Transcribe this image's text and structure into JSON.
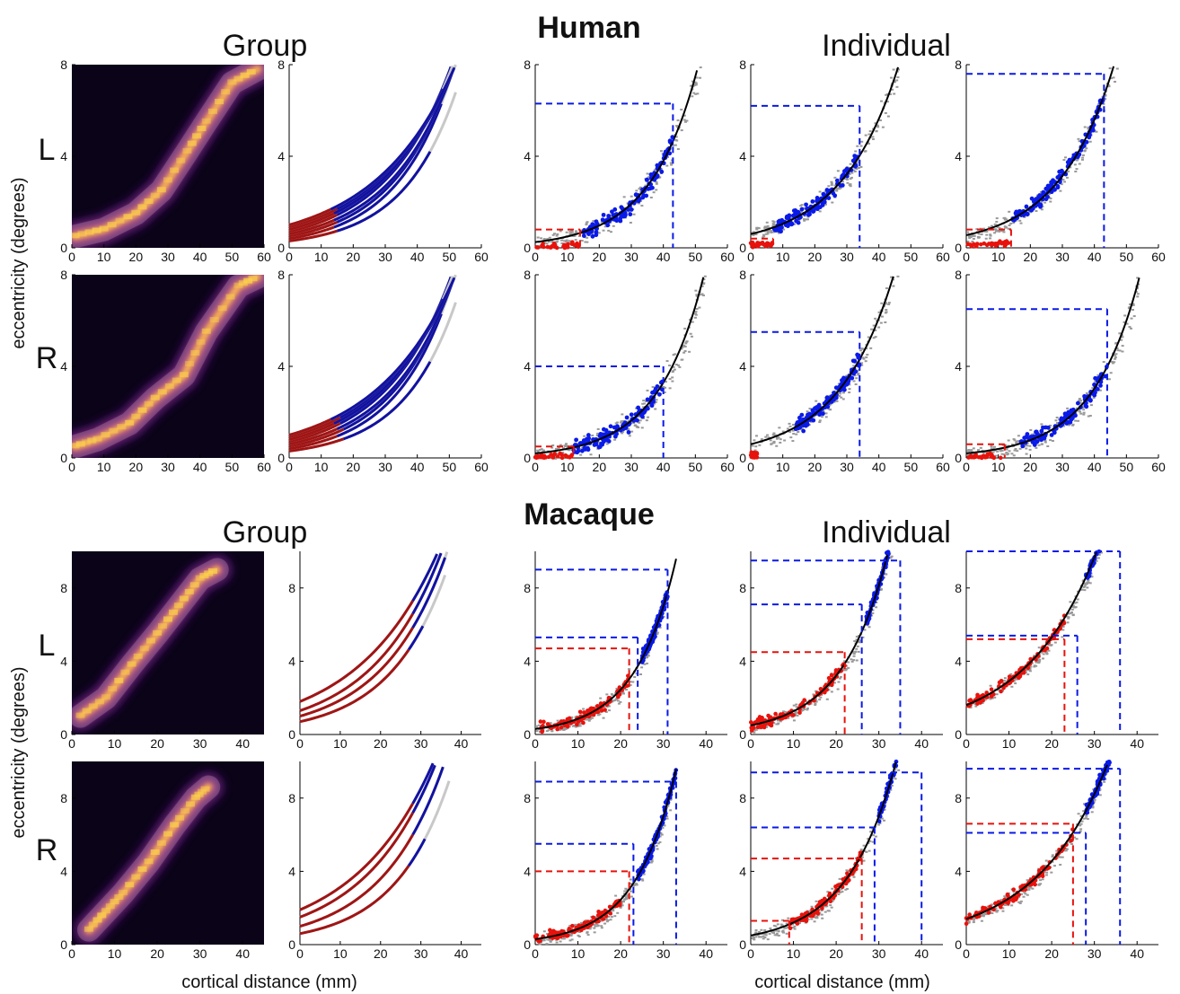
{
  "headings": {
    "human": "Human",
    "macaque": "Macaque",
    "group": "Group",
    "individual": "Individual"
  },
  "axes": {
    "ylabel": "eccentricity (degrees)",
    "xlabel": "cortical distance (mm)"
  },
  "hemispheres": [
    "L",
    "R"
  ],
  "colors": {
    "foveal": "#e8120c",
    "peripheral": "#0a1ae8",
    "fit_red": "#a01515",
    "fit_blue": "#1212a0",
    "fit_grey": "#c8c8c8",
    "points_grey": "#999999",
    "fit_black": "#000000",
    "heatmap_bg": "#0b0418"
  },
  "chart_data": {
    "species": [
      {
        "name": "Human",
        "x_ticks": [
          "0",
          "10",
          "20",
          "30",
          "40",
          "50",
          "60"
        ],
        "y_ticks": [
          "0",
          "4",
          "8"
        ],
        "xlim": [
          0,
          60
        ],
        "ylim": [
          0,
          8
        ],
        "rows": [
          {
            "hemisphere": "L",
            "group_heatmap": {
              "type": "heatmap",
              "path": [
                [
                  1,
                  0.5
                ],
                [
                  10,
                  0.8
                ],
                [
                  20,
                  1.5
                ],
                [
                  28,
                  2.5
                ],
                [
                  36,
                  4.2
                ],
                [
                  42,
                  5.5
                ],
                [
                  50,
                  7.2
                ],
                [
                  58,
                  7.8
                ]
              ]
            },
            "group_fits": {
              "type": "line",
              "curves": [
                {
                  "a": 0.3,
                  "b": 0.06,
                  "x_end": 52,
                  "split": 15
                },
                {
                  "a": 0.5,
                  "b": 0.054,
                  "x_end": 54,
                  "split": 15
                },
                {
                  "a": 0.7,
                  "b": 0.048,
                  "x_end": 56,
                  "split": 15
                },
                {
                  "a": 0.9,
                  "b": 0.042,
                  "x_end": 58,
                  "split": 15
                },
                {
                  "a": 0.4,
                  "b": 0.058,
                  "x_end": 53,
                  "split": 14
                },
                {
                  "a": 0.6,
                  "b": 0.05,
                  "x_end": 55,
                  "split": 14
                },
                {
                  "a": 0.8,
                  "b": 0.045,
                  "x_end": 57,
                  "split": 14
                },
                {
                  "a": 1.0,
                  "b": 0.04,
                  "x_end": 58,
                  "split": 13
                }
              ]
            },
            "individuals": [
              {
                "type": "scatter",
                "fit_a": 0.25,
                "fit_b": 0.068,
                "red_h": 0.8,
                "red_v": 14,
                "blue_h": 6.3,
                "blue_v": 43,
                "blue_range": [
                  14,
                  43
                ],
                "cloud_end": 55
              },
              {
                "type": "scatter",
                "fit_a": 0.6,
                "fit_b": 0.056,
                "red_h": 0.4,
                "red_v": 7,
                "blue_h": 6.2,
                "blue_v": 34,
                "blue_range": [
                  7,
                  34
                ],
                "cloud_end": 58
              },
              {
                "type": "scatter",
                "fit_a": 0.55,
                "fit_b": 0.058,
                "red_h": 0.8,
                "red_v": 14,
                "blue_h": 7.6,
                "blue_v": 43,
                "blue_range": [
                  14,
                  43
                ],
                "cloud_end": 58
              }
            ]
          },
          {
            "hemisphere": "R",
            "group_heatmap": {
              "type": "heatmap",
              "path": [
                [
                  1,
                  0.5
                ],
                [
                  8,
                  0.8
                ],
                [
                  18,
                  1.5
                ],
                [
                  26,
                  2.6
                ],
                [
                  35,
                  3.6
                ],
                [
                  42,
                  5.5
                ],
                [
                  52,
                  7.5
                ],
                [
                  58,
                  7.9
                ]
              ]
            },
            "group_fits": {
              "type": "line",
              "curves": [
                {
                  "a": 0.3,
                  "b": 0.06,
                  "x_end": 52,
                  "split": 17
                },
                {
                  "a": 0.5,
                  "b": 0.054,
                  "x_end": 54,
                  "split": 17
                },
                {
                  "a": 0.7,
                  "b": 0.048,
                  "x_end": 56,
                  "split": 16
                },
                {
                  "a": 0.9,
                  "b": 0.042,
                  "x_end": 58,
                  "split": 16
                },
                {
                  "a": 0.4,
                  "b": 0.058,
                  "x_end": 53,
                  "split": 15
                },
                {
                  "a": 0.6,
                  "b": 0.05,
                  "x_end": 55,
                  "split": 15
                },
                {
                  "a": 0.8,
                  "b": 0.045,
                  "x_end": 57,
                  "split": 14
                },
                {
                  "a": 1.0,
                  "b": 0.04,
                  "x_end": 58,
                  "split": 13
                }
              ]
            },
            "individuals": [
              {
                "type": "scatter",
                "fit_a": 0.2,
                "fit_b": 0.07,
                "red_h": 0.5,
                "red_v": 12,
                "blue_h": 4.0,
                "blue_v": 40,
                "blue_range": [
                  12,
                  40
                ],
                "cloud_end": 56
              },
              {
                "type": "scatter",
                "fit_a": 0.6,
                "fit_b": 0.058,
                "red_h": 0.1,
                "red_v": 2,
                "blue_h": 5.5,
                "blue_v": 34,
                "blue_range": [
                  14,
                  34
                ],
                "cloud_end": 58
              },
              {
                "type": "scatter",
                "fit_a": 0.2,
                "fit_b": 0.068,
                "red_h": 0.6,
                "red_v": 12,
                "blue_h": 6.5,
                "blue_v": 44,
                "blue_range": [
                  17,
                  44
                ],
                "cloud_end": 58
              }
            ]
          }
        ]
      },
      {
        "name": "Macaque",
        "x_ticks": [
          "0",
          "10",
          "20",
          "30",
          "40"
        ],
        "y_ticks": [
          "0",
          "4",
          "8"
        ],
        "xlim": [
          0,
          45
        ],
        "ylim": [
          0,
          10
        ],
        "rows": [
          {
            "hemisphere": "L",
            "group_heatmap": {
              "type": "heatmap",
              "path": [
                [
                  2,
                  1.0
                ],
                [
                  8,
                  2.0
                ],
                [
                  14,
                  3.8
                ],
                [
                  20,
                  5.5
                ],
                [
                  25,
                  7.0
                ],
                [
                  30,
                  8.5
                ],
                [
                  34,
                  9.0
                ]
              ]
            },
            "group_fits": {
              "type": "line",
              "curves": [
                {
                  "a": 1.8,
                  "b": 0.05,
                  "x_end": 42,
                  "split": 28
                },
                {
                  "a": 1.3,
                  "b": 0.058,
                  "x_end": 40,
                  "split": 28
                },
                {
                  "a": 1.0,
                  "b": 0.063,
                  "x_end": 38,
                  "split": 28
                },
                {
                  "a": 0.7,
                  "b": 0.07,
                  "x_end": 36,
                  "split": 27
                }
              ]
            },
            "individuals": [
              {
                "type": "scatter",
                "fit_a": 0.3,
                "fit_b": 0.105,
                "red_h": 4.7,
                "red_v": 22,
                "blue_h": 5.3,
                "blue_v": 24,
                "blue_top": 9.0,
                "blue_top_v": 31,
                "blue_range": [
                  25,
                  31
                ],
                "red_range": [
                  1,
                  22
                ],
                "cloud_end": 30
              },
              {
                "type": "scatter",
                "fit_a": 0.5,
                "fit_b": 0.093,
                "red_h": 4.5,
                "red_v": 22,
                "blue_h": 7.1,
                "blue_v": 26,
                "blue_top": 9.5,
                "blue_top_v": 35,
                "blue_range": [
                  27,
                  35
                ],
                "red_range": [
                  0,
                  22
                ],
                "cloud_end": 35
              },
              {
                "type": "scatter",
                "fit_a": 1.6,
                "fit_b": 0.06,
                "red_h": 5.2,
                "red_v": 23,
                "blue_h": 5.4,
                "blue_v": 26,
                "blue_top": 10.0,
                "blue_top_v": 36,
                "blue_range": [
                  28,
                  36
                ],
                "red_range": [
                  0,
                  23
                ],
                "cloud_end": 36
              }
            ]
          },
          {
            "hemisphere": "R",
            "group_heatmap": {
              "type": "heatmap",
              "path": [
                [
                  4,
                  0.8
                ],
                [
                  8,
                  1.8
                ],
                [
                  12,
                  2.8
                ],
                [
                  18,
                  4.5
                ],
                [
                  24,
                  6.5
                ],
                [
                  29,
                  8.0
                ],
                [
                  32,
                  8.6
                ]
              ]
            },
            "group_fits": {
              "type": "line",
              "curves": [
                {
                  "a": 1.9,
                  "b": 0.05,
                  "x_end": 42,
                  "split": 28
                },
                {
                  "a": 1.5,
                  "b": 0.056,
                  "x_end": 41,
                  "split": 28
                },
                {
                  "a": 1.0,
                  "b": 0.064,
                  "x_end": 39,
                  "split": 28
                },
                {
                  "a": 0.6,
                  "b": 0.073,
                  "x_end": 37,
                  "split": 27
                }
              ]
            },
            "individuals": [
              {
                "type": "scatter",
                "fit_a": 0.3,
                "fit_b": 0.105,
                "red_h": 4.0,
                "red_v": 22,
                "blue_h": 5.5,
                "blue_v": 23,
                "blue_top": 8.9,
                "blue_top_v": 33,
                "blue_range": [
                  24,
                  33
                ],
                "red_range": [
                  0,
                  20
                ],
                "cloud_end": 32
              },
              {
                "type": "scatter",
                "fit_a": 0.5,
                "fit_b": 0.088,
                "red_h": 4.7,
                "red_v": 26,
                "blue_h": 6.4,
                "blue_v": 29,
                "blue_top": 9.4,
                "blue_top_v": 40,
                "blue_range": [
                  30,
                  40
                ],
                "red_range": [
                  9,
                  26
                ],
                "red_low_h": 1.3,
                "red_low_v": 9,
                "cloud_end": 40
              },
              {
                "type": "scatter",
                "fit_a": 1.4,
                "fit_b": 0.059,
                "red_h": 6.6,
                "red_v": 25,
                "blue_h": 6.1,
                "blue_v": 28,
                "blue_top": 9.6,
                "blue_top_v": 36,
                "blue_range": [
                  28,
                  36
                ],
                "red_range": [
                  0,
                  25
                ],
                "cloud_end": 36
              }
            ]
          }
        ]
      }
    ]
  }
}
